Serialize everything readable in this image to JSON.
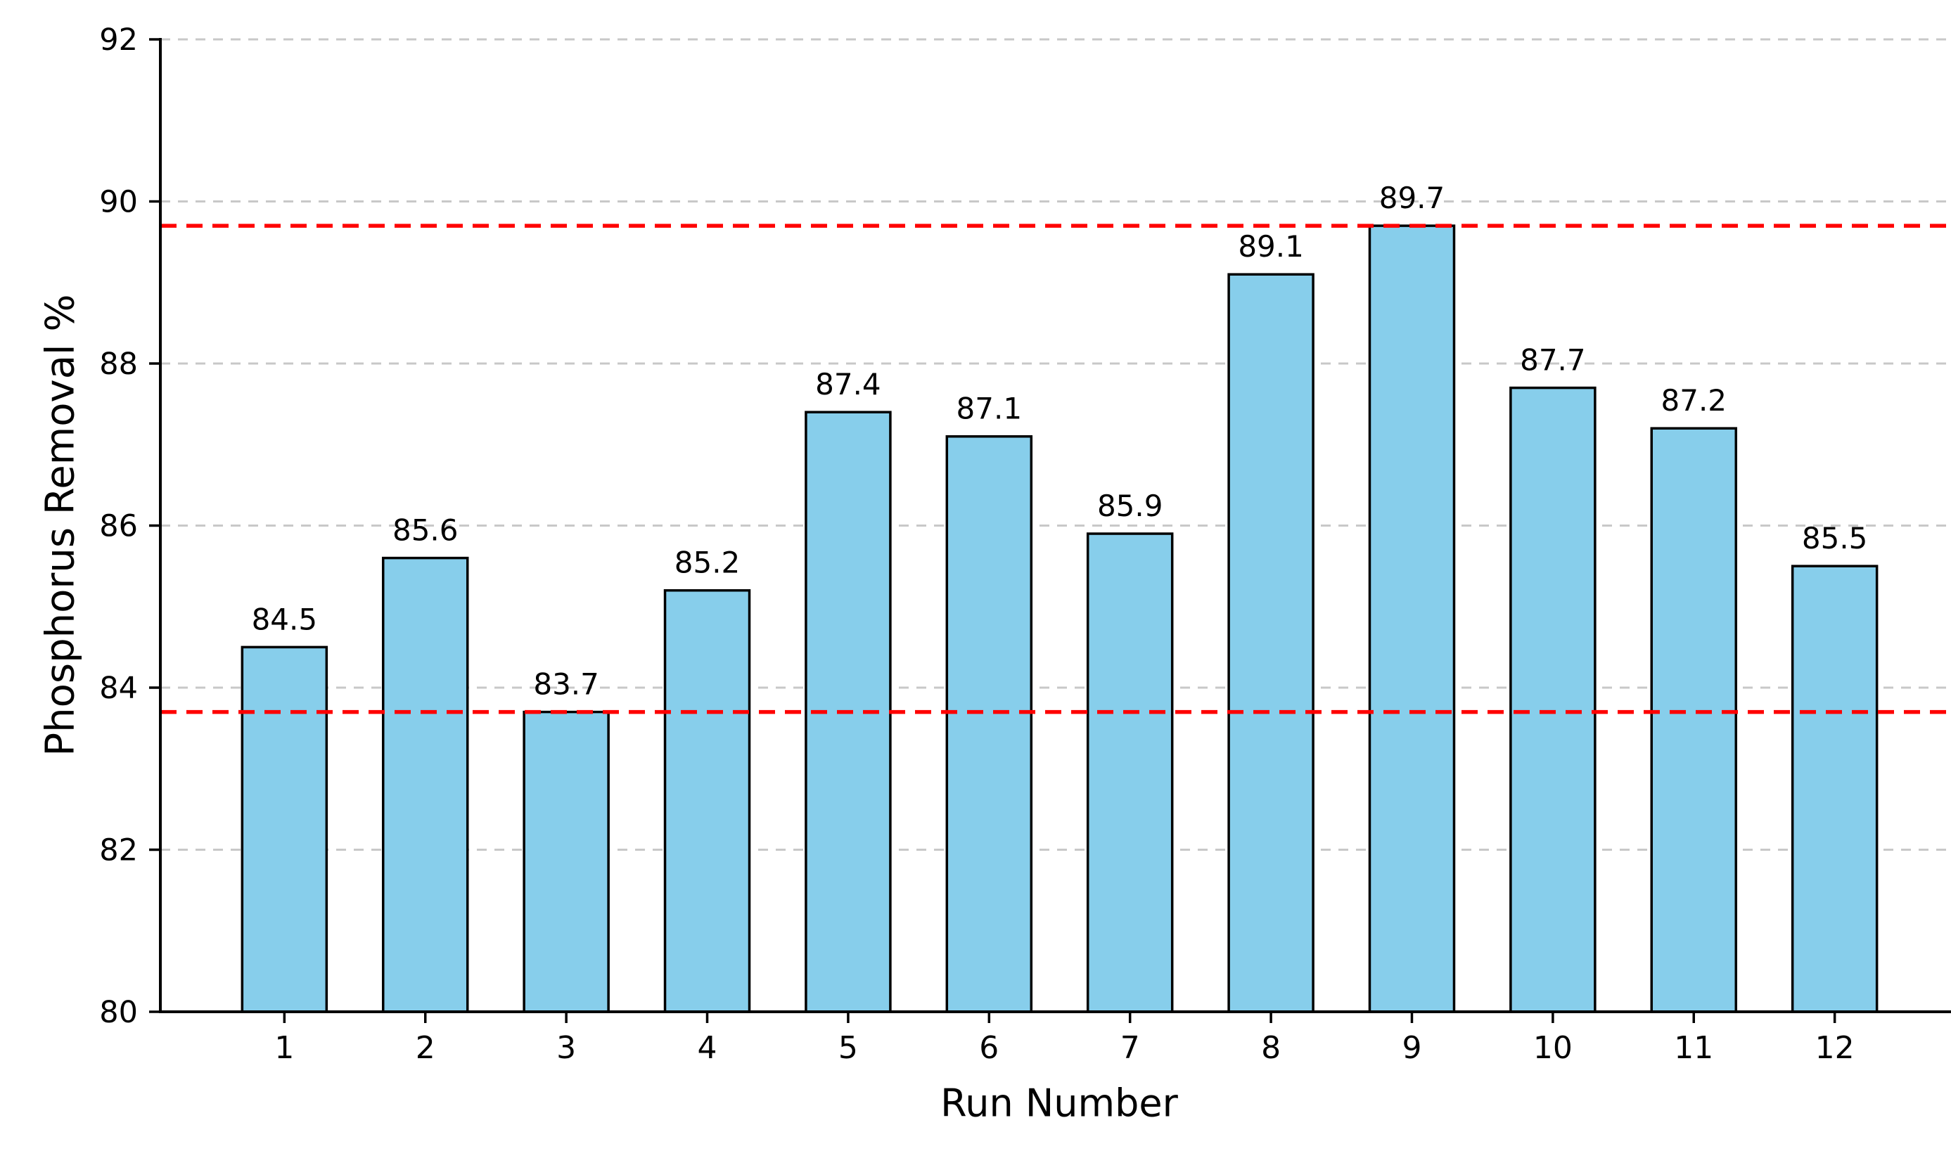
{
  "figure": {
    "background": "#ffffff",
    "title": ""
  },
  "chart_data": {
    "type": "bar",
    "title": "",
    "xlabel": "Run Number",
    "ylabel": "Phosphorus Removal %",
    "categories": [
      "1",
      "2",
      "3",
      "4",
      "5",
      "6",
      "7",
      "8",
      "9",
      "10",
      "11",
      "12"
    ],
    "values": [
      84.5,
      85.6,
      83.7,
      85.2,
      87.4,
      87.1,
      85.9,
      89.1,
      89.7,
      87.7,
      87.2,
      85.5
    ],
    "bar_labels": [
      "84.5",
      "85.6",
      "83.7",
      "85.2",
      "87.4",
      "87.1",
      "85.9",
      "89.1",
      "89.7",
      "87.7",
      "87.2",
      "85.5"
    ],
    "ylim": [
      80,
      92
    ],
    "yticks": [
      80,
      82,
      84,
      86,
      88,
      90,
      92
    ],
    "grid": "horizontal-dashed",
    "legend_position": "none",
    "reference_lines": [
      {
        "name": "upper-reference-line",
        "value": 89.7,
        "style": "dashed"
      },
      {
        "name": "lower-reference-line",
        "value": 83.7,
        "style": "dashed"
      }
    ],
    "colors": {
      "bar_fill": "#87CEEB",
      "bar_edge": "#000000",
      "grid_line": "#c8c8c8",
      "reference_line": "#ff0000",
      "axis_line": "#000000",
      "text": "#000000"
    }
  }
}
